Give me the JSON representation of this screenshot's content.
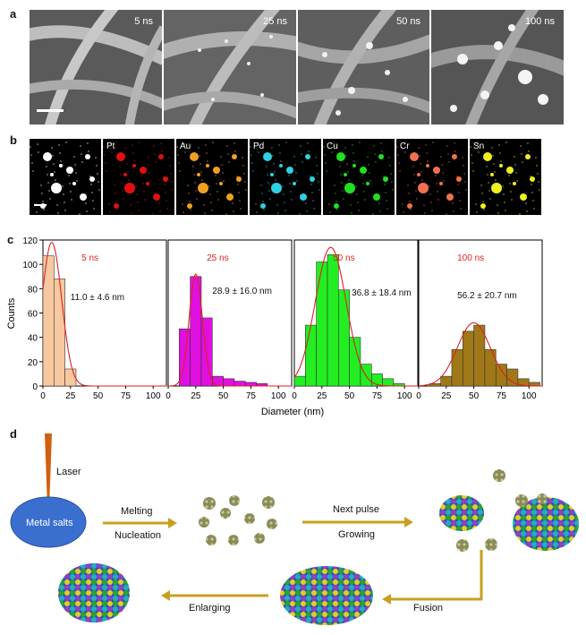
{
  "panels": {
    "a": {
      "letter": "a",
      "images": [
        {
          "label": "5 ns"
        },
        {
          "label": "25 ns"
        },
        {
          "label": "50 ns"
        },
        {
          "label": "100 ns"
        }
      ]
    },
    "b": {
      "letter": "b",
      "maps": [
        {
          "label": "",
          "color": "#ffffff"
        },
        {
          "label": "Pt",
          "color": "#e01010"
        },
        {
          "label": "Au",
          "color": "#f0a020"
        },
        {
          "label": "Pd",
          "color": "#30d0e0"
        },
        {
          "label": "Cu",
          "color": "#20e020"
        },
        {
          "label": "Cr",
          "color": "#f07050"
        },
        {
          "label": "Sn",
          "color": "#f0f020"
        }
      ]
    },
    "c": {
      "letter": "c"
    },
    "d": {
      "letter": "d",
      "laser": "Laser",
      "metal_salts": "Metal salts",
      "melting": "Melting",
      "nucleation": "Nucleation",
      "next_pulse": "Next pulse",
      "growing": "Growing",
      "fusion": "Fusion",
      "enlarging": "Enlarging"
    }
  },
  "chart_data": {
    "type": "bar",
    "ylabel": "Counts",
    "xlabel": "Diameter (nm)",
    "ylim": [
      0,
      120
    ],
    "yticks": [
      0,
      20,
      40,
      60,
      80,
      100,
      120
    ],
    "xticks": [
      0,
      25,
      50,
      75,
      100
    ],
    "xlim": [
      0,
      112
    ],
    "series": [
      {
        "name": "5 ns",
        "stats": "11.0 ± 4.6 nm",
        "color": "#f8c8a0",
        "bins": [
          5,
          15,
          25
        ],
        "values": [
          107,
          88,
          14
        ],
        "fit": {
          "mu": 8,
          "sigma": 9,
          "amp": 118
        }
      },
      {
        "name": "25 ns",
        "stats": "28.9 ± 16.0 nm",
        "color": "#e010e0",
        "bins": [
          15,
          25,
          35,
          45,
          55,
          65,
          75,
          85
        ],
        "values": [
          47,
          90,
          56,
          8,
          6,
          4,
          3,
          2
        ],
        "fit": {
          "mu": 25,
          "sigma": 6,
          "amp": 92
        }
      },
      {
        "name": "50 ns",
        "stats": "36.8 ± 18.4 nm",
        "color": "#22ee22",
        "bins": [
          5,
          15,
          25,
          35,
          45,
          55,
          65,
          75,
          85,
          95
        ],
        "values": [
          8,
          50,
          102,
          108,
          79,
          40,
          18,
          10,
          6,
          2
        ],
        "fit": {
          "mu": 33,
          "sigma": 14,
          "amp": 114
        }
      },
      {
        "name": "100 ns",
        "stats": "56.2 ± 20.7 nm",
        "color": "#a07818",
        "bins": [
          15,
          25,
          35,
          45,
          55,
          65,
          75,
          85,
          95,
          105
        ],
        "values": [
          2,
          8,
          30,
          45,
          50,
          30,
          18,
          14,
          6,
          3
        ],
        "fit": {
          "mu": 50,
          "sigma": 15,
          "amp": 52
        }
      }
    ],
    "series_label_color": "#e02020"
  }
}
